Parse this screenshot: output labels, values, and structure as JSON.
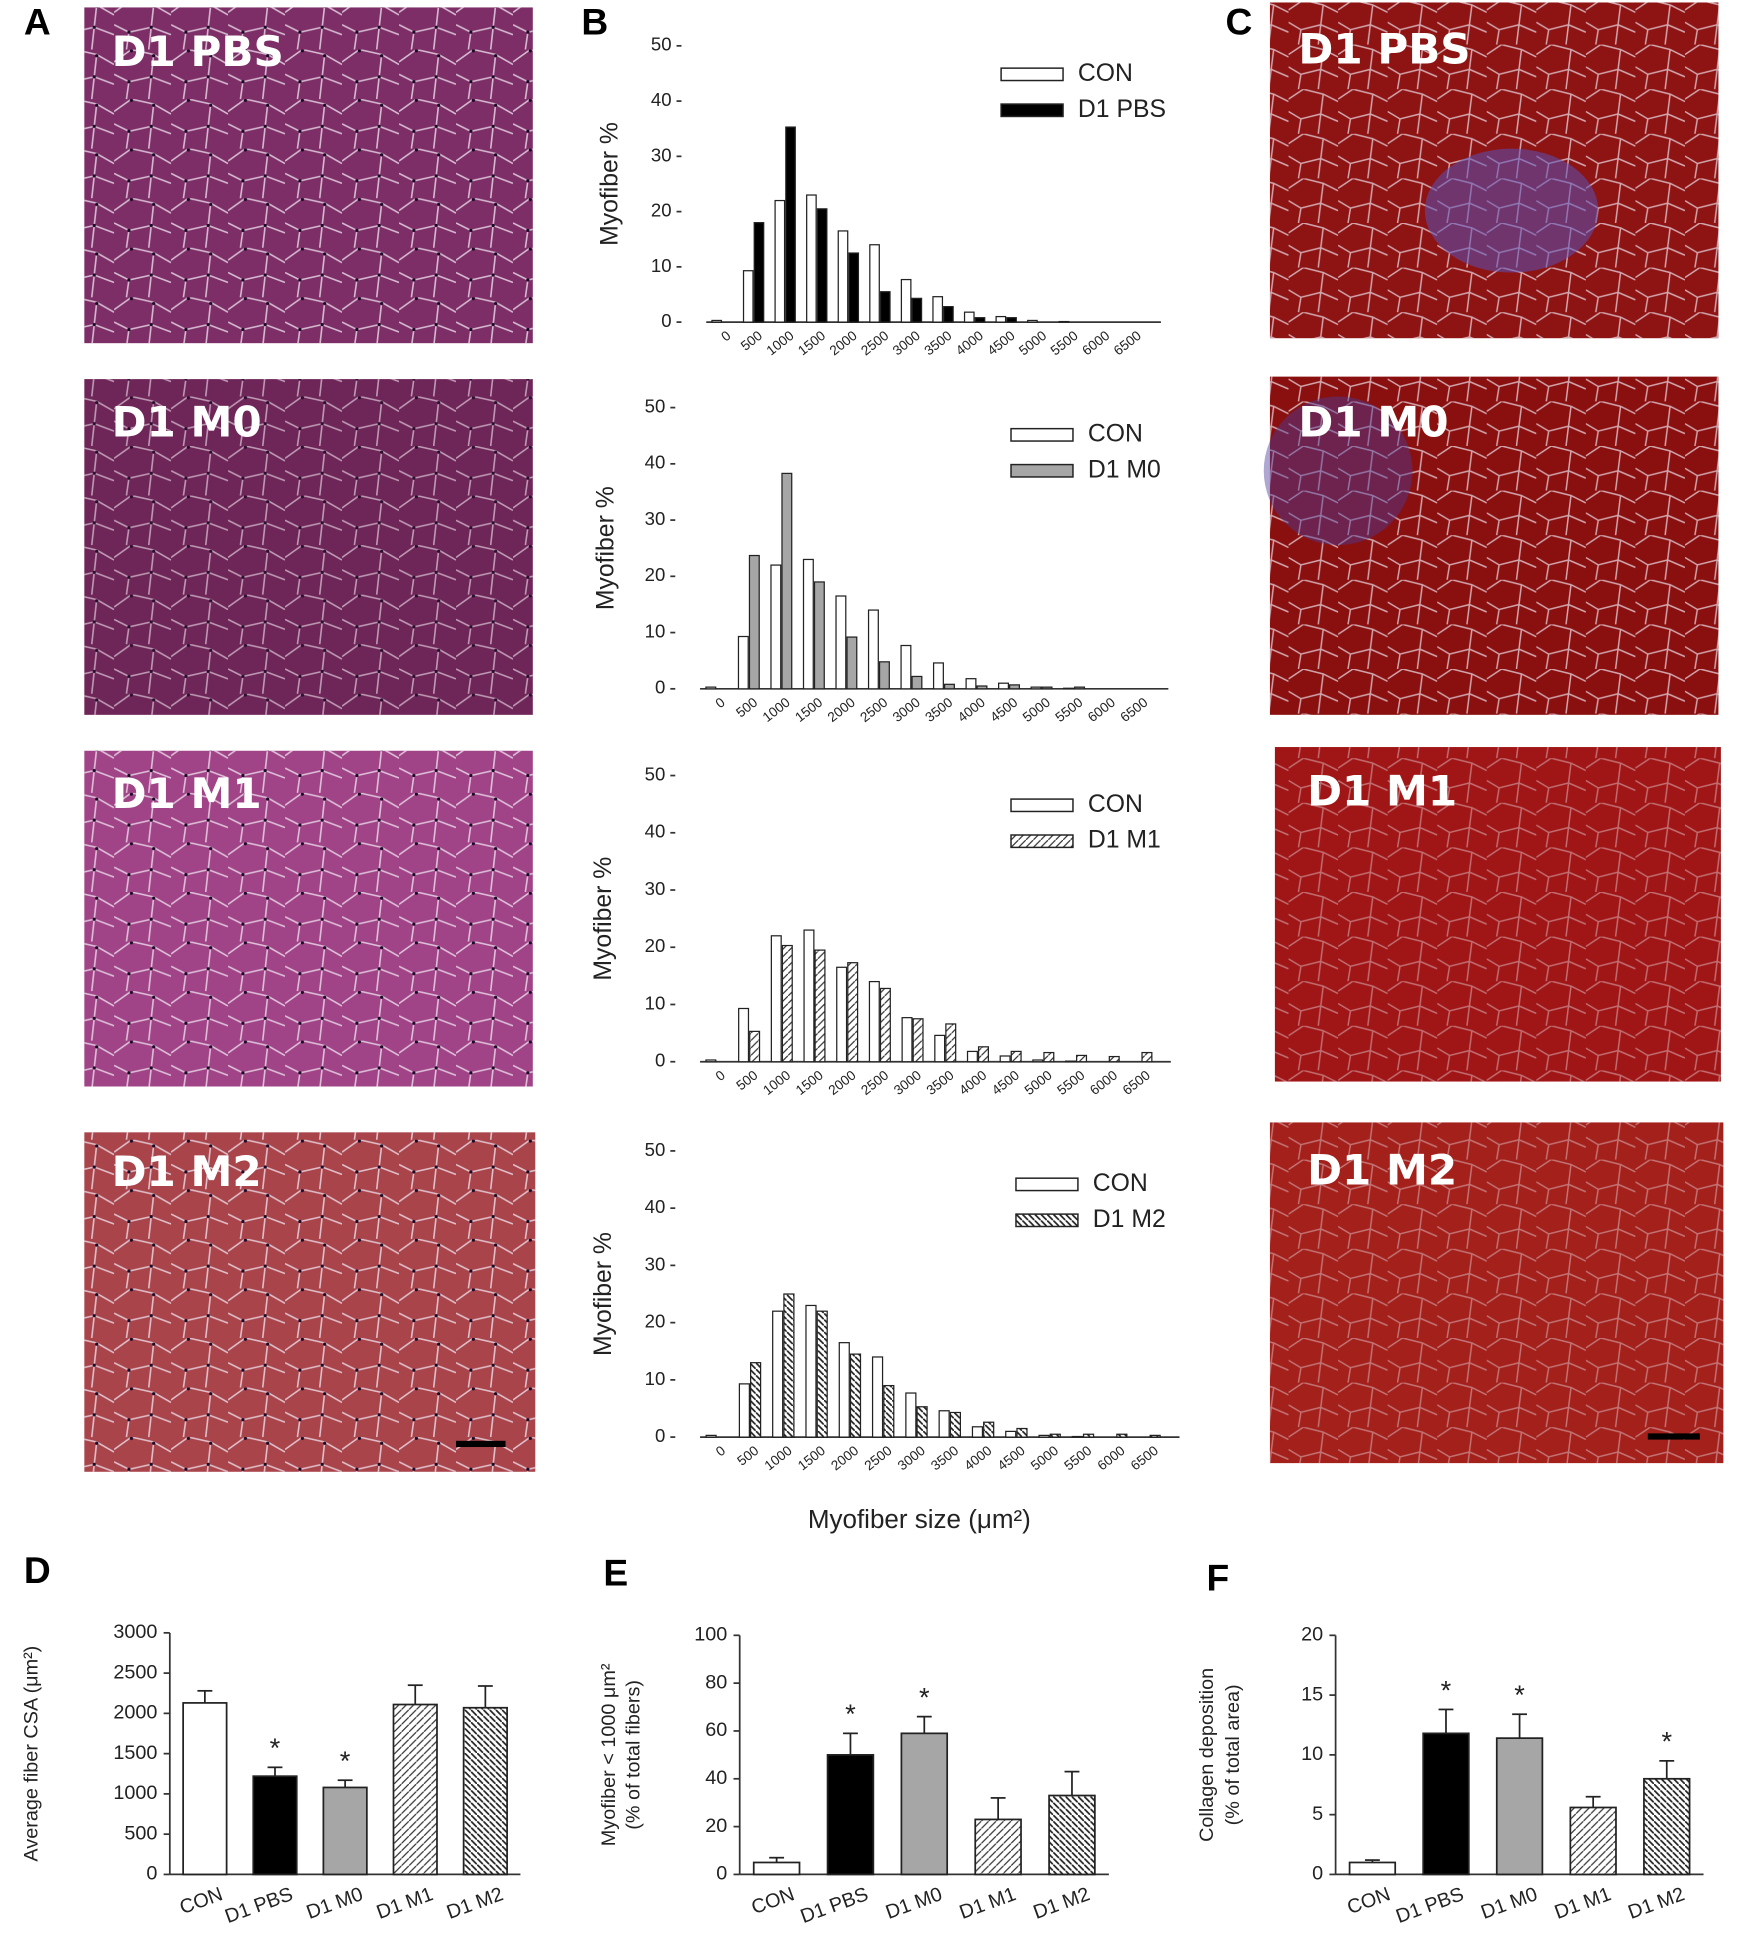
{
  "panel_letters": [
    "A",
    "B",
    "C",
    "D",
    "E",
    "F"
  ],
  "micrograph_columns": [
    {
      "labels": [
        "D1 PBS",
        "D1 M0",
        "D1 M1",
        "D1 M2"
      ]
    },
    {
      "labels": [
        "D1 PBS",
        "D1 M0",
        "D1 M1",
        "D1 M2"
      ]
    }
  ],
  "chart_data": [
    {
      "type": "histogram-bar",
      "ylabel": "Myofiber %",
      "categories": [
        "0",
        "500",
        "1000",
        "1500",
        "2000",
        "2500",
        "3000",
        "3500",
        "4000",
        "4500",
        "5000",
        "5500",
        "6000",
        "6500"
      ],
      "ylim": [
        0,
        50
      ],
      "yticks": [
        0,
        10,
        20,
        30,
        40,
        50
      ],
      "legend": "top-right",
      "series": [
        {
          "name": "CON",
          "color": "#ffffff",
          "pattern": null,
          "values": [
            0.3,
            9.3,
            22,
            23,
            16.5,
            14,
            7.7,
            4.6,
            1.8,
            1.0,
            0.3,
            0.1,
            0,
            0
          ]
        },
        {
          "name": "D1 PBS",
          "color": "#000000",
          "pattern": null,
          "values": [
            0,
            18,
            35.3,
            20.5,
            12.5,
            5.5,
            4.3,
            2.8,
            0.8,
            0.8,
            0,
            0,
            0,
            0
          ]
        }
      ]
    },
    {
      "type": "histogram-bar",
      "ylabel": "Myofiber %",
      "categories": [
        "0",
        "500",
        "1000",
        "1500",
        "2000",
        "2500",
        "3000",
        "3500",
        "4000",
        "4500",
        "5000",
        "5500",
        "6000",
        "6500"
      ],
      "ylim": [
        0,
        50
      ],
      "yticks": [
        0,
        10,
        20,
        30,
        40,
        50
      ],
      "legend": "top-right",
      "series": [
        {
          "name": "CON",
          "color": "#ffffff",
          "pattern": null,
          "values": [
            0.3,
            9.3,
            22,
            23,
            16.5,
            14,
            7.7,
            4.6,
            1.8,
            1.0,
            0.3,
            0.1,
            0,
            0
          ]
        },
        {
          "name": "D1 M0",
          "color": "#a6a6a6",
          "pattern": null,
          "values": [
            0,
            23.7,
            38.3,
            19,
            9.2,
            4.8,
            2.2,
            0.8,
            0.5,
            0.7,
            0.3,
            0.3,
            0,
            0
          ]
        }
      ]
    },
    {
      "type": "histogram-bar",
      "ylabel": "Myofiber %",
      "categories": [
        "0",
        "500",
        "1000",
        "1500",
        "2000",
        "2500",
        "3000",
        "3500",
        "4000",
        "4500",
        "5000",
        "5500",
        "6000",
        "6500"
      ],
      "ylim": [
        0,
        50
      ],
      "yticks": [
        0,
        10,
        20,
        30,
        40,
        50
      ],
      "legend": "top-right",
      "series": [
        {
          "name": "CON",
          "color": "#ffffff",
          "pattern": null,
          "values": [
            0.3,
            9.3,
            22,
            23,
            16.5,
            14,
            7.7,
            4.6,
            1.8,
            1.0,
            0.3,
            0.1,
            0,
            0
          ]
        },
        {
          "name": "D1 M1",
          "color": "#ffffff",
          "pattern": "forward-hatch",
          "values": [
            0,
            5.3,
            20.3,
            19.5,
            17.3,
            12.8,
            7.5,
            6.6,
            2.6,
            1.8,
            1.6,
            1.1,
            0.9,
            1.6
          ]
        }
      ]
    },
    {
      "type": "histogram-bar",
      "ylabel": "Myofiber %",
      "xlabel": "Myofiber size (μm²)",
      "categories": [
        "0",
        "500",
        "1000",
        "1500",
        "2000",
        "2500",
        "3000",
        "3500",
        "4000",
        "4500",
        "5000",
        "5500",
        "6000",
        "6500"
      ],
      "ylim": [
        0,
        50
      ],
      "yticks": [
        0,
        10,
        20,
        30,
        40,
        50
      ],
      "legend": "top-right",
      "series": [
        {
          "name": "CON",
          "color": "#ffffff",
          "pattern": null,
          "values": [
            0.3,
            9.3,
            22,
            23,
            16.5,
            14,
            7.7,
            4.6,
            1.8,
            1.0,
            0.3,
            0.1,
            0,
            0
          ]
        },
        {
          "name": "D1 M2",
          "color": "#ffffff",
          "pattern": "back-hatch",
          "values": [
            0,
            13,
            25,
            22,
            14.5,
            9,
            5.3,
            4.3,
            2.6,
            1.5,
            0.5,
            0.5,
            0.5,
            0.3
          ]
        }
      ]
    },
    {
      "type": "error-bar",
      "ylabel": [
        "Average fiber CSA (μm²)"
      ],
      "categories": [
        "CON",
        "D1 PBS",
        "D1 M0",
        "D1 M1",
        "D1 M2"
      ],
      "values": [
        2130,
        1220,
        1080,
        2110,
        2070
      ],
      "errors": [
        150,
        110,
        90,
        240,
        270
      ],
      "colors": [
        "#ffffff",
        "#000000",
        "#a6a6a6",
        "#ffffff",
        "#ffffff"
      ],
      "patterns": [
        null,
        null,
        null,
        "forward-hatch",
        "back-hatch"
      ],
      "significance": [
        null,
        "*",
        "*",
        null,
        null
      ],
      "ylim": [
        0,
        3000
      ],
      "yticks": [
        0,
        500,
        1000,
        1500,
        2000,
        2500,
        3000
      ]
    },
    {
      "type": "error-bar",
      "ylabel": [
        "Myofiber < 1000 μm²",
        "(% of total fibers)"
      ],
      "categories": [
        "CON",
        "D1 PBS",
        "D1 M0",
        "D1 M1",
        "D1 M2"
      ],
      "values": [
        5,
        50,
        59,
        23,
        33
      ],
      "errors": [
        2,
        9,
        7,
        9,
        10
      ],
      "colors": [
        "#ffffff",
        "#000000",
        "#a6a6a6",
        "#ffffff",
        "#ffffff"
      ],
      "patterns": [
        null,
        null,
        null,
        "forward-hatch",
        "back-hatch"
      ],
      "significance": [
        null,
        "*",
        "*",
        null,
        null
      ],
      "ylim": [
        0,
        100
      ],
      "yticks": [
        0,
        20,
        40,
        60,
        80,
        100
      ]
    },
    {
      "type": "error-bar",
      "ylabel": [
        "Collagen deposition",
        "(% of total area)"
      ],
      "categories": [
        "CON",
        "D1 PBS",
        "D1 M0",
        "D1 M1",
        "D1 M2"
      ],
      "values": [
        1,
        11.8,
        11.4,
        5.6,
        8
      ],
      "errors": [
        0.2,
        2,
        2,
        0.9,
        1.5
      ],
      "colors": [
        "#ffffff",
        "#000000",
        "#a6a6a6",
        "#ffffff",
        "#ffffff"
      ],
      "patterns": [
        null,
        null,
        null,
        "forward-hatch",
        "back-hatch"
      ],
      "significance": [
        null,
        "*",
        "*",
        null,
        "*"
      ],
      "ylim": [
        0,
        20
      ],
      "yticks": [
        0,
        5,
        10,
        15,
        20
      ]
    }
  ]
}
